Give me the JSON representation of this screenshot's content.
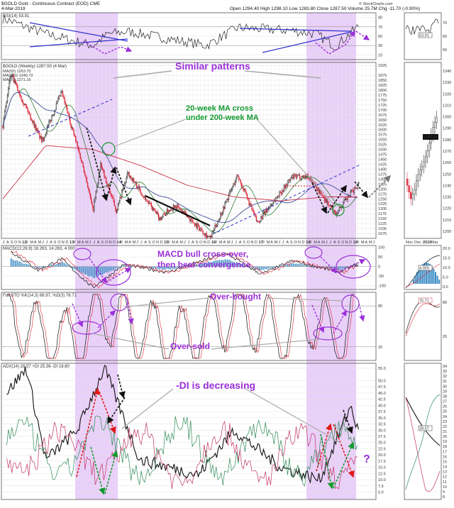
{
  "header": {
    "symbol_line": "$GOLD Gold - Continuous Contract (EOD) CME",
    "date": "4-Mar-2019",
    "quote": "Open 1294.40  High 1298.10  Low 1283.80  Close 1287.50  Volume 25.7M  Chg -11.70 (-0.90%)",
    "credit": "© StockCharts.com"
  },
  "panels": {
    "rsi": {
      "legend": "RSI(14) 53.91",
      "right_label": "53.91"
    },
    "price": {
      "legend": "$GOLD (Weekly) 1287.50 (4 Mar)",
      "ma1": "MA(50) 1263.70",
      "ma2": "MA(200) 1240.72",
      "ma3": "MA(20) 1271.16",
      "right_label": "1287.50"
    },
    "macd": {
      "legend": "MACD(12,26,9) 18.263, 14.263, 4.000",
      "right_label": "4.000"
    },
    "sto": {
      "legend": "Full STO %K(14,3) 66.97, %D(3) 76.71",
      "right_label": "76.71"
    },
    "adx": {
      "legend": "ADX(14) 28.57 +DI 25.36 -DI 18.60",
      "right_label": "28.57"
    }
  },
  "annotations": {
    "similar": "Similar patterns",
    "ma_cross_1": "20-week MA cross",
    "ma_cross_2": "under 200-week MA",
    "macd_1": "MACD bull cross-over,",
    "macd_2": "then bear convergence",
    "overbought": "Over-bought",
    "oversold": "Over-sold",
    "di": "-DI is decreasing",
    "question": "?"
  },
  "chart_data": [
    {
      "type": "line",
      "name": "RSI(14)",
      "x": [
        "2011-07",
        "2012-06",
        "2013-01",
        "2013-06",
        "2013-10",
        "2014-03",
        "2015-11",
        "2016-07",
        "2017-09",
        "2018-03",
        "2018-08",
        "2019-02"
      ],
      "y": [
        88,
        55,
        40,
        30,
        55,
        60,
        30,
        68,
        62,
        55,
        28,
        72
      ],
      "ticks": [
        "90",
        "70",
        "50",
        "30",
        "10"
      ],
      "ylim": [
        0,
        100
      ]
    },
    {
      "type": "line",
      "name": "$GOLD (Weekly)",
      "x": [
        "2011-07",
        "2011-09",
        "2012-05",
        "2012-10",
        "2013-04",
        "2013-06",
        "2013-08",
        "2013-12",
        "2014-03",
        "2014-11",
        "2015-03",
        "2015-12",
        "2016-07",
        "2016-12",
        "2017-09",
        "2018-01",
        "2018-08",
        "2019-02"
      ],
      "y": [
        1620,
        1880,
        1540,
        1790,
        1380,
        1190,
        1420,
        1190,
        1380,
        1150,
        1220,
        1050,
        1370,
        1130,
        1360,
        1365,
        1175,
        1330
      ],
      "ticks": [
        "1925",
        "1875",
        "1850",
        "1825",
        "1800",
        "1775",
        "1750",
        "1725",
        "1700",
        "1675",
        "1650",
        "1625",
        "1600",
        "1575",
        "1550",
        "1525",
        "1500",
        "1475",
        "1450",
        "1425",
        "1400",
        "1375",
        "1350",
        "1325",
        "1300",
        "1275",
        "1250",
        "1225",
        "1200",
        "1175",
        "1150",
        "1125",
        "1100",
        "1075"
      ],
      "ylim": [
        1050,
        1940
      ]
    },
    {
      "type": "line",
      "name": "MACD(12,26,9)",
      "x": [
        "2011-09",
        "2012-04",
        "2012-10",
        "2013-06",
        "2014-02",
        "2015-01",
        "2016-04",
        "2017-01",
        "2017-09",
        "2018-09",
        "2019-02"
      ],
      "y": [
        80,
        -20,
        40,
        -110,
        10,
        -30,
        70,
        -40,
        30,
        -30,
        18
      ],
      "ticks": [
        "100",
        "50",
        "0",
        "-50",
        "-100"
      ],
      "ylim": [
        -120,
        110
      ]
    },
    {
      "type": "line",
      "name": "Full STO %K(14,3)",
      "x": [
        "2011-08",
        "2012-05",
        "2013-03",
        "2013-08",
        "2014-05",
        "2015-05",
        "2016-06",
        "2017-06",
        "2018-02",
        "2018-08",
        "2019-01"
      ],
      "y": [
        85,
        20,
        10,
        95,
        40,
        15,
        90,
        30,
        80,
        5,
        90
      ],
      "ticks": [
        "80",
        "20"
      ],
      "ylim": [
        0,
        100
      ]
    },
    {
      "type": "line",
      "name": "ADX(14)",
      "x": [
        "2011-08",
        "2012-01",
        "2012-06",
        "2013-02",
        "2013-09",
        "2014-06",
        "2015-09",
        "2016-06",
        "2017-06",
        "2018-04",
        "2018-12",
        "2019-02"
      ],
      "y": [
        45,
        55,
        18,
        30,
        55,
        18,
        12,
        30,
        15,
        10,
        40,
        28
      ],
      "ticks": [
        "55.0",
        "50.0",
        "47.5",
        "45.0",
        "42.5",
        "40.0",
        "37.5",
        "35.0",
        "32.5",
        "30.0",
        "27.5",
        "25.0",
        "22.5",
        "20.0",
        "17.5",
        "15.0",
        "12.5",
        "10.0",
        "7.5",
        "5.0"
      ],
      "ylim": [
        2,
        57
      ]
    }
  ],
  "x_axis": [
    "J",
    "A",
    "S",
    "O",
    "N",
    "12",
    "F",
    "M",
    "A",
    "M",
    "J",
    "J",
    "A",
    "S",
    "O",
    "N",
    "D",
    "13",
    "F",
    "M",
    "A",
    "M",
    "J",
    "J",
    "A",
    "S",
    "O",
    "N",
    "D",
    "14",
    "F",
    "M",
    "A",
    "M",
    "J",
    "J",
    "A",
    "S",
    "O",
    "N",
    "D",
    "15",
    "F",
    "M",
    "A",
    "M",
    "J",
    "J",
    "A",
    "S",
    "O",
    "N",
    "D",
    "16",
    "F",
    "M",
    "A",
    "M",
    "J",
    "J",
    "A",
    "S",
    "O",
    "N",
    "D",
    "17",
    "F",
    "M",
    "A",
    "M",
    "J",
    "J",
    "A",
    "S",
    "O",
    "N",
    "D",
    "18",
    "F",
    "M",
    "A",
    "M",
    "J",
    "J",
    "A",
    "S",
    "O",
    "N",
    "D",
    "19",
    "F",
    "M",
    "A",
    "M",
    "J"
  ],
  "side": {
    "x_labels": [
      "Nov",
      "Dec",
      "2019",
      "Mar"
    ],
    "rsi_ticks": [
      "70",
      "60",
      "50"
    ],
    "price_ticks": [
      "1340",
      "1330",
      "1320",
      "1310",
      "1300",
      "1290",
      "1280",
      "1270",
      "1260",
      "1250",
      "1240",
      "1230",
      "1220",
      "1210",
      "1200"
    ],
    "macd_ticks": [
      "20.0",
      "15.0",
      "10.0",
      "5.0",
      "0.0"
    ],
    "sto_ticks": [
      "80",
      "20"
    ],
    "adx_ticks": [
      "34",
      "33",
      "32",
      "31",
      "30",
      "29",
      "28",
      "27",
      "26",
      "25",
      "24",
      "23",
      "22",
      "21",
      "20",
      "19",
      "18",
      "17",
      "16",
      "15",
      "14",
      "13",
      "12",
      "11",
      "10",
      "9",
      "8"
    ]
  },
  "colors": {
    "highlight": "#e5c8f7",
    "annotation": "#9b30d9",
    "green": "#139a2f",
    "ma200": "#cc3344",
    "ma50": "#404e9c",
    "ma20": "#2e7d32"
  }
}
